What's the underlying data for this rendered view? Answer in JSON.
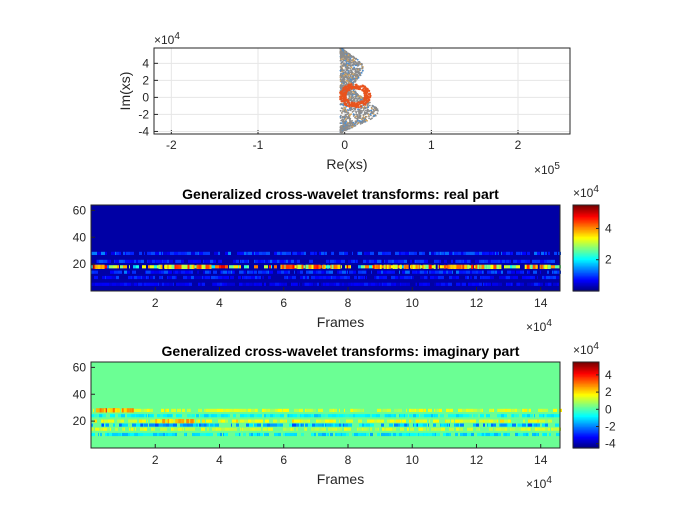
{
  "chart_data": [
    {
      "type": "scatter",
      "title": "",
      "xlabel": "Re(xs)",
      "ylabel": "Im(xs)",
      "xlim": [
        -2.2,
        2.6
      ],
      "ylim": [
        -4.3,
        5.8
      ],
      "x_exponent": "×10^5",
      "y_exponent": "×10^4",
      "x_ticks": [
        "-2",
        "-1",
        "0",
        "1",
        "2"
      ],
      "y_ticks": [
        "-4",
        "-2",
        "0",
        "2",
        "4"
      ],
      "grid": true,
      "series": [
        {
          "color": "#8c8c8c",
          "shape": "teardrop",
          "x_range": [
            -0.05,
            0.5
          ],
          "y_range": [
            -4.1,
            5.9
          ]
        },
        {
          "color": "#e8541f",
          "shape": "loop",
          "x_center": 0.12,
          "y_center": 0.2,
          "x_radius": 0.18,
          "y_radius": 1.4
        }
      ]
    },
    {
      "type": "heatmap",
      "title": "Generalized cross-wavelet transforms: real part",
      "xlabel": "Frames",
      "ylabel": "",
      "x_exponent": "×10^4",
      "xlim": [
        0,
        14.6
      ],
      "ylim": [
        0,
        64
      ],
      "x_ticks": [
        "2",
        "4",
        "6",
        "8",
        "10",
        "12",
        "14"
      ],
      "y_ticks": [
        "20",
        "40",
        "60"
      ],
      "colorbar": {
        "exponent": "×10^4",
        "ticks": [
          "2",
          "4"
        ],
        "range": [
          0,
          5.5
        ],
        "colormap": "jet"
      },
      "background_value": 0.2,
      "bands": [
        {
          "y": 28,
          "value": 1.3
        },
        {
          "y": 22,
          "value": 1.1
        },
        {
          "y": 18,
          "value": 4.5
        },
        {
          "y": 14,
          "value": 1.2
        },
        {
          "y": 10,
          "value": 1.0
        },
        {
          "y": 5,
          "value": 0.8
        }
      ],
      "hot_segments": [
        {
          "y": 18,
          "x_start": 0.05,
          "x_end": 0.35,
          "value": 5.2
        },
        {
          "y": 18,
          "x_start": 2.1,
          "x_end": 3.8,
          "value": 4.8
        },
        {
          "y": 18,
          "x_start": 5.9,
          "x_end": 7.8,
          "value": 4.9
        },
        {
          "y": 18,
          "x_start": 8.8,
          "x_end": 10.8,
          "value": 4.8
        },
        {
          "y": 18,
          "x_start": 11.0,
          "x_end": 12.8,
          "value": 4.7
        },
        {
          "y": 18,
          "x_start": 13.5,
          "x_end": 14.3,
          "value": 4.6
        }
      ]
    },
    {
      "type": "heatmap",
      "title": "Generalized cross-wavelet transforms: imaginary part",
      "xlabel": "Frames",
      "ylabel": "",
      "x_exponent": "×10^4",
      "xlim": [
        0,
        14.6
      ],
      "ylim": [
        0,
        64
      ],
      "x_ticks": [
        "2",
        "4",
        "6",
        "8",
        "10",
        "12",
        "14"
      ],
      "y_ticks": [
        "20",
        "40",
        "60"
      ],
      "colorbar": {
        "exponent": "×10^4",
        "ticks": [
          "4",
          "2",
          "0",
          "-2",
          "-4"
        ],
        "range": [
          -4.5,
          5.5
        ],
        "colormap": "jet"
      },
      "background_value": 0.3,
      "bands": [
        {
          "y": 28,
          "value": 1.8
        },
        {
          "y": 24,
          "value": -1.2
        },
        {
          "y": 20,
          "value": 2.0
        },
        {
          "y": 17,
          "value": -2.2
        },
        {
          "y": 14,
          "value": 1.6
        },
        {
          "y": 10,
          "value": -1.5
        }
      ],
      "hot_segments": [
        {
          "y": 28,
          "x_start": 0.4,
          "x_end": 0.9,
          "value": 4.8
        },
        {
          "y": 28,
          "x_start": 0.15,
          "x_end": 1.3,
          "value": 3.2
        },
        {
          "y": 20,
          "x_start": 2.0,
          "x_end": 3.2,
          "value": 3.0
        }
      ]
    }
  ]
}
